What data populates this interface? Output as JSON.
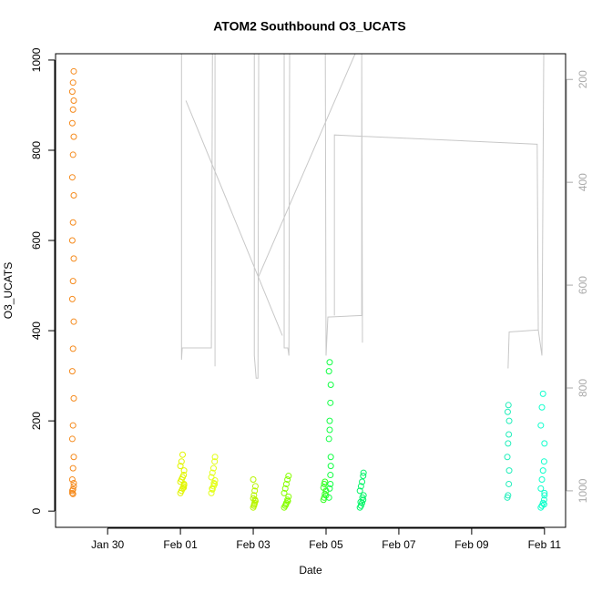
{
  "chart_data": {
    "type": "scatter",
    "title": "ATOM2 Southbound O3_UCATS",
    "x_label": "Date",
    "y_label": "O3_UCATS",
    "xlim": [
      -1.43,
      12.58
    ],
    "xticks": [
      {
        "value": 0,
        "label": "Jan 30"
      },
      {
        "value": 2,
        "label": "Feb 01"
      },
      {
        "value": 4,
        "label": "Feb 03"
      },
      {
        "value": 6,
        "label": "Feb 05"
      },
      {
        "value": 8,
        "label": "Feb 07"
      },
      {
        "value": 10,
        "label": "Feb 09"
      },
      {
        "value": 12,
        "label": "Feb 11"
      }
    ],
    "ylim": [
      -36,
      1014
    ],
    "yticks": [
      0,
      200,
      400,
      600,
      800,
      1000
    ],
    "y2lim": [
      1071,
      150
    ],
    "y2ticks": [
      200,
      400,
      600,
      800,
      1000
    ],
    "series": [
      {
        "color": "#f58a1c",
        "x": [
          -0.97,
          -0.95,
          -0.93,
          -0.97,
          -0.95,
          -0.93,
          -0.97,
          -0.95,
          -0.93,
          -0.97,
          -0.95,
          -0.93,
          -0.97,
          -0.95,
          -0.93,
          -0.97,
          -0.95,
          -0.93,
          -0.97,
          -0.95,
          -0.93,
          -0.97,
          -0.95,
          -0.93,
          -0.97,
          -0.95,
          -0.93,
          -0.97,
          -0.95,
          -0.93
        ],
        "values": [
          40,
          48,
          55,
          70,
          95,
          120,
          160,
          190,
          250,
          310,
          360,
          420,
          470,
          510,
          560,
          600,
          640,
          700,
          740,
          790,
          830,
          860,
          890,
          910,
          930,
          950,
          975,
          45,
          38,
          62
        ]
      },
      {
        "color": "#e2f500",
        "x": [
          2.0,
          2.03,
          2.06,
          2.09,
          2.1,
          2.0,
          2.03,
          2.06,
          2.09,
          2.1,
          2.0,
          2.03,
          2.06,
          2.09,
          2.1
        ],
        "values": [
          40,
          45,
          50,
          55,
          60,
          65,
          70,
          75,
          80,
          90,
          100,
          110,
          125,
          52,
          58
        ]
      },
      {
        "color": "#e4ff1a",
        "x": [
          2.85,
          2.88,
          2.91,
          2.94,
          2.95,
          2.85,
          2.88,
          2.91,
          2.94,
          2.95,
          2.87,
          2.92
        ],
        "values": [
          40,
          48,
          55,
          60,
          68,
          75,
          85,
          95,
          110,
          120,
          50,
          62
        ]
      },
      {
        "color": "#b8f500",
        "x": [
          4.0,
          4.02,
          4.04,
          4.06,
          4.0,
          4.02,
          4.04,
          4.06,
          4.0,
          4.03,
          4.05
        ],
        "values": [
          8,
          12,
          18,
          22,
          28,
          35,
          45,
          55,
          70,
          15,
          25
        ]
      },
      {
        "color": "#86ff00",
        "x": [
          4.85,
          4.88,
          4.91,
          4.94,
          4.97,
          4.85,
          4.88,
          4.91,
          4.94,
          4.97,
          4.9,
          4.95
        ],
        "values": [
          8,
          12,
          18,
          25,
          32,
          40,
          50,
          60,
          70,
          78,
          15,
          22
        ]
      },
      {
        "color": "#33ff22",
        "x": [
          5.93,
          5.95,
          5.97,
          6.0,
          5.93,
          5.95,
          5.97,
          6.0
        ],
        "values": [
          25,
          30,
          38,
          45,
          52,
          60,
          65,
          35
        ]
      },
      {
        "color": "#11ff44",
        "x": [
          6.08,
          6.1,
          6.12,
          6.13,
          6.08,
          6.1,
          6.12,
          6.13,
          6.08,
          6.1,
          6.12,
          6.13,
          6.1
        ],
        "values": [
          30,
          50,
          80,
          120,
          160,
          200,
          240,
          280,
          310,
          330,
          60,
          100,
          180
        ]
      },
      {
        "color": "#00f566",
        "x": [
          6.93,
          6.96,
          6.99,
          7.02,
          7.03,
          6.93,
          6.96,
          6.99,
          7.02,
          7.03,
          6.95,
          7.0
        ],
        "values": [
          8,
          12,
          18,
          25,
          35,
          45,
          55,
          65,
          78,
          85,
          20,
          30
        ]
      },
      {
        "color": "#22eebb",
        "x": [
          10.98,
          11.0,
          11.02,
          11.03,
          10.98,
          11.0,
          11.02,
          11.03,
          10.99,
          11.01
        ],
        "values": [
          30,
          35,
          60,
          90,
          120,
          150,
          170,
          200,
          220,
          235
        ]
      },
      {
        "color": "#11ffcc",
        "x": [
          11.9,
          11.93,
          11.96,
          11.99,
          12.0,
          11.9,
          11.93,
          11.96,
          11.99,
          12.0,
          11.9,
          11.93,
          11.96,
          11.99,
          12.0
        ],
        "values": [
          8,
          12,
          18,
          25,
          35,
          50,
          70,
          90,
          110,
          150,
          190,
          230,
          260,
          15,
          40
        ]
      },
      {
        "type": "line",
        "axis": "y2",
        "color": "#c8c8c8",
        "x": [
          2.03,
          2.03,
          2.05,
          2.85,
          2.88,
          2.95,
          2.95,
          null,
          2.15,
          4.8,
          null,
          4.03,
          4.03,
          4.08,
          4.13,
          4.15,
          null,
          4.13,
          6.8,
          null,
          4.85,
          4.85,
          4.95,
          4.98,
          5.0,
          null,
          5.98,
          6.0,
          6.05,
          6.98,
          6.98,
          7.0,
          null,
          6.23,
          6.23,
          11.8,
          11.83,
          11.93,
          11.98,
          null,
          11.0,
          11.03,
          11.83
        ],
        "values": [
          150,
          745,
          722,
          722,
          150,
          150,
          758,
          null,
          241,
          698,
          null,
          150,
          737,
          781,
          781,
          150,
          null,
          586,
          150,
          null,
          150,
          722,
          722,
          737,
          150,
          null,
          150,
          737,
          662,
          659,
          150,
          712,
          null,
          659,
          308,
          326,
          687,
          737,
          150,
          null,
          762,
          691,
          687
        ]
      }
    ]
  }
}
